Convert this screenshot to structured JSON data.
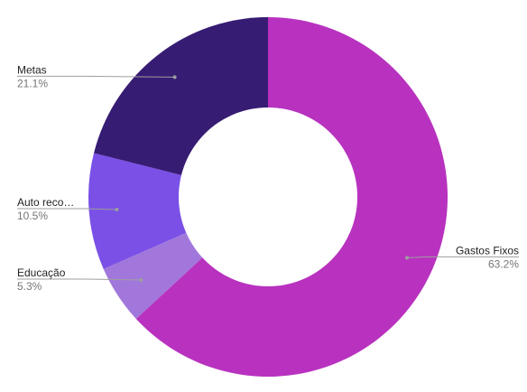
{
  "chart_data": {
    "type": "pie",
    "donut": true,
    "title": "",
    "slices": [
      {
        "label": "Gastos Fixos",
        "display_label": "Gastos Fixos",
        "value": 63.2,
        "percent_label": "63.2%",
        "color": "#b832bf",
        "label_side": "right"
      },
      {
        "label": "Educação",
        "display_label": "Educação",
        "value": 5.3,
        "percent_label": "5.3%",
        "color": "#a277db",
        "label_side": "left"
      },
      {
        "label": "Auto reco…",
        "display_label": "Auto reco…",
        "value": 10.5,
        "percent_label": "10.5%",
        "color": "#7a50e6",
        "label_side": "left"
      },
      {
        "label": "Metas",
        "display_label": "Metas",
        "value": 21.1,
        "percent_label": "21.1%",
        "color": "#371c73",
        "label_side": "left"
      }
    ],
    "start": "12 o'clock",
    "direction": "clockwise",
    "legend": "none",
    "labels": "outside with leader lines"
  }
}
